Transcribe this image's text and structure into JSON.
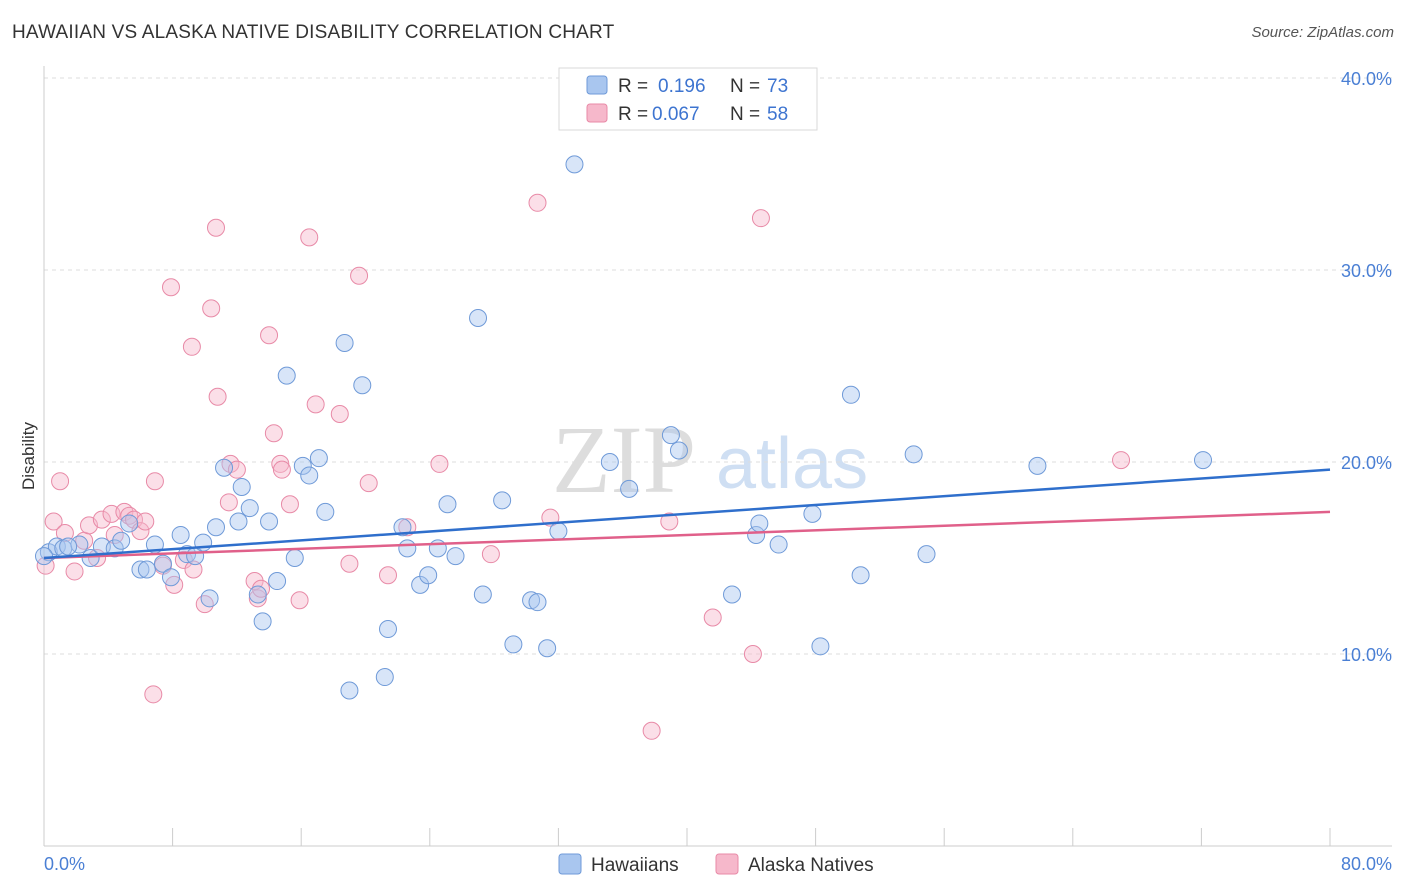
{
  "title": "HAWAIIAN VS ALASKA NATIVE DISABILITY CORRELATION CHART",
  "source": "Source: ZipAtlas.com",
  "watermark": {
    "zip": "ZIP",
    "atlas": "atlas"
  },
  "legend": {
    "rows": [
      {
        "r_label": "R =",
        "r_value": "0.196",
        "n_label": "N =",
        "n_value": "73"
      },
      {
        "r_label": "R =",
        "r_value": "0.067",
        "n_label": "N =",
        "n_value": "58"
      }
    ]
  },
  "colors": {
    "hawaiians_fill": "#a9c6ef",
    "hawaiians_stroke": "#6f9ad8",
    "hawaiians_line": "#2f6fcc",
    "alaska_fill": "#f6b8cb",
    "alaska_stroke": "#e88aa7",
    "alaska_line": "#e0608a",
    "tick_label": "#4a7fd4"
  },
  "chart_data": {
    "type": "scatter",
    "xlabel": "",
    "ylabel": "Disability",
    "xlim": [
      0,
      80
    ],
    "ylim": [
      0,
      40
    ],
    "x_tick_labels": [
      "0.0%",
      "80.0%"
    ],
    "y_ticks": [
      10,
      20,
      30,
      40
    ],
    "y_tick_labels": [
      "10.0%",
      "20.0%",
      "30.0%",
      "40.0%"
    ],
    "grid": "horizontal dashed",
    "legend_position": "top-center",
    "series": [
      {
        "name": "Hawaiians",
        "r": 0.196,
        "n": 73,
        "trend": {
          "x": [
            0,
            80
          ],
          "y": [
            15.0,
            19.6
          ]
        },
        "points": [
          [
            0.3,
            15.3
          ],
          [
            0.8,
            15.6
          ],
          [
            1.2,
            15.5
          ],
          [
            2.2,
            15.7
          ],
          [
            2.9,
            15.0
          ],
          [
            3.6,
            15.6
          ],
          [
            4.4,
            15.5
          ],
          [
            4.8,
            15.9
          ],
          [
            5.3,
            16.8
          ],
          [
            6.0,
            14.4
          ],
          [
            6.4,
            14.4
          ],
          [
            6.9,
            15.7
          ],
          [
            7.4,
            14.7
          ],
          [
            7.9,
            14.0
          ],
          [
            8.5,
            16.2
          ],
          [
            8.9,
            15.2
          ],
          [
            9.4,
            15.1
          ],
          [
            9.9,
            15.8
          ],
          [
            10.3,
            12.9
          ],
          [
            10.7,
            16.6
          ],
          [
            11.2,
            19.7
          ],
          [
            12.1,
            16.9
          ],
          [
            12.3,
            18.7
          ],
          [
            12.8,
            17.6
          ],
          [
            13.3,
            13.1
          ],
          [
            13.6,
            11.7
          ],
          [
            14.0,
            16.9
          ],
          [
            14.5,
            13.8
          ],
          [
            15.1,
            24.5
          ],
          [
            15.6,
            15.0
          ],
          [
            16.1,
            19.8
          ],
          [
            16.5,
            19.3
          ],
          [
            17.1,
            20.2
          ],
          [
            17.5,
            17.4
          ],
          [
            18.7,
            26.2
          ],
          [
            19.0,
            8.1
          ],
          [
            19.8,
            24.0
          ],
          [
            21.2,
            8.8
          ],
          [
            21.4,
            11.3
          ],
          [
            22.3,
            16.6
          ],
          [
            22.6,
            15.5
          ],
          [
            23.4,
            13.6
          ],
          [
            23.9,
            14.1
          ],
          [
            24.5,
            15.5
          ],
          [
            25.1,
            17.8
          ],
          [
            25.6,
            15.1
          ],
          [
            27.0,
            27.5
          ],
          [
            27.3,
            13.1
          ],
          [
            28.5,
            18.0
          ],
          [
            29.2,
            10.5
          ],
          [
            30.3,
            12.8
          ],
          [
            30.7,
            12.7
          ],
          [
            31.3,
            10.3
          ],
          [
            32.0,
            16.4
          ],
          [
            33.0,
            35.5
          ],
          [
            35.2,
            20.0
          ],
          [
            36.4,
            18.6
          ],
          [
            39.0,
            21.4
          ],
          [
            39.5,
            20.6
          ],
          [
            42.8,
            13.1
          ],
          [
            44.3,
            16.2
          ],
          [
            44.5,
            16.8
          ],
          [
            45.7,
            15.7
          ],
          [
            47.8,
            17.3
          ],
          [
            48.3,
            10.4
          ],
          [
            50.2,
            23.5
          ],
          [
            50.8,
            14.1
          ],
          [
            54.1,
            20.4
          ],
          [
            54.9,
            15.2
          ],
          [
            61.8,
            19.8
          ],
          [
            72.1,
            20.1
          ],
          [
            0.0,
            15.1
          ],
          [
            1.5,
            15.6
          ]
        ]
      },
      {
        "name": "Alaska Natives",
        "r": 0.067,
        "n": 58,
        "trend": {
          "x": [
            0,
            80
          ],
          "y": [
            15.0,
            17.4
          ]
        },
        "points": [
          [
            0.1,
            14.6
          ],
          [
            0.6,
            16.9
          ],
          [
            1.0,
            19.0
          ],
          [
            1.3,
            16.3
          ],
          [
            1.9,
            14.3
          ],
          [
            2.5,
            15.9
          ],
          [
            2.8,
            16.7
          ],
          [
            3.3,
            15.0
          ],
          [
            3.6,
            17.0
          ],
          [
            4.2,
            17.3
          ],
          [
            4.4,
            16.2
          ],
          [
            5.0,
            17.4
          ],
          [
            5.3,
            17.2
          ],
          [
            5.6,
            17.0
          ],
          [
            6.0,
            16.4
          ],
          [
            6.3,
            16.9
          ],
          [
            6.8,
            7.9
          ],
          [
            6.9,
            19.0
          ],
          [
            7.4,
            14.6
          ],
          [
            7.9,
            29.1
          ],
          [
            8.1,
            13.6
          ],
          [
            8.7,
            14.9
          ],
          [
            9.2,
            26.0
          ],
          [
            9.3,
            14.4
          ],
          [
            10.0,
            12.6
          ],
          [
            10.4,
            28.0
          ],
          [
            10.7,
            32.2
          ],
          [
            10.8,
            23.4
          ],
          [
            11.5,
            17.9
          ],
          [
            11.6,
            19.9
          ],
          [
            12.0,
            19.6
          ],
          [
            13.1,
            13.8
          ],
          [
            13.3,
            12.9
          ],
          [
            13.5,
            13.4
          ],
          [
            14.0,
            26.6
          ],
          [
            14.3,
            21.5
          ],
          [
            14.7,
            19.9
          ],
          [
            14.8,
            19.6
          ],
          [
            15.3,
            17.8
          ],
          [
            15.9,
            12.8
          ],
          [
            16.5,
            31.7
          ],
          [
            16.9,
            23.0
          ],
          [
            18.4,
            22.5
          ],
          [
            19.0,
            14.7
          ],
          [
            19.6,
            29.7
          ],
          [
            20.2,
            18.9
          ],
          [
            21.4,
            14.1
          ],
          [
            22.6,
            16.6
          ],
          [
            24.6,
            19.9
          ],
          [
            27.8,
            15.2
          ],
          [
            30.7,
            33.5
          ],
          [
            31.5,
            17.1
          ],
          [
            37.8,
            6.0
          ],
          [
            38.9,
            16.9
          ],
          [
            41.6,
            11.9
          ],
          [
            44.1,
            10.0
          ],
          [
            44.6,
            32.7
          ],
          [
            67.0,
            20.1
          ]
        ]
      }
    ]
  },
  "bottom_legend": {
    "items": [
      {
        "label": "Hawaiians"
      },
      {
        "label": "Alaska Natives"
      }
    ]
  }
}
